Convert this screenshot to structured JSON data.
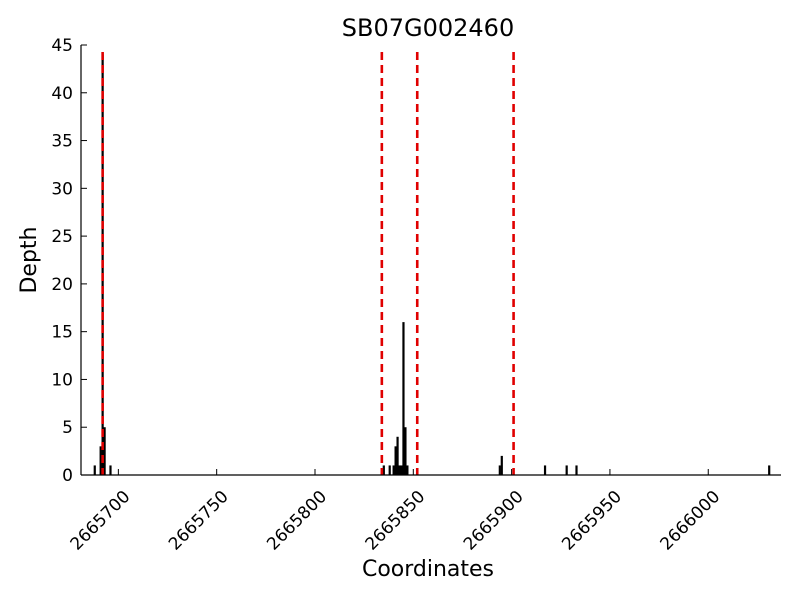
{
  "chart_data": {
    "type": "bar",
    "title": "SB07G002460",
    "xlabel": "Coordinates",
    "ylabel": "Depth",
    "xlim": [
      2665681,
      2666037
    ],
    "ylim": [
      0,
      45
    ],
    "xticks": [
      2665700,
      2665750,
      2665800,
      2665850,
      2665900,
      2665950,
      2666000
    ],
    "xtick_labels": [
      "2665700",
      "2665750",
      "2665800",
      "2665850",
      "2665900",
      "2665950",
      "2666000"
    ],
    "yticks": [
      0,
      5,
      10,
      15,
      20,
      25,
      30,
      35,
      40,
      45
    ],
    "ytick_labels": [
      "0",
      "5",
      "10",
      "15",
      "20",
      "25",
      "30",
      "35",
      "40",
      "45"
    ],
    "grid": false,
    "bar_color": "#000000",
    "vline_color": "#e00000",
    "bars": [
      {
        "x": 2665688,
        "y": 1
      },
      {
        "x": 2665691,
        "y": 3
      },
      {
        "x": 2665692,
        "y": 44
      },
      {
        "x": 2665693,
        "y": 5
      },
      {
        "x": 2665696,
        "y": 1
      },
      {
        "x": 2665835,
        "y": 1
      },
      {
        "x": 2665838,
        "y": 1
      },
      {
        "x": 2665840,
        "y": 1
      },
      {
        "x": 2665841,
        "y": 3
      },
      {
        "x": 2665842,
        "y": 4
      },
      {
        "x": 2665843,
        "y": 1
      },
      {
        "x": 2665844,
        "y": 1
      },
      {
        "x": 2665845,
        "y": 16
      },
      {
        "x": 2665846,
        "y": 5
      },
      {
        "x": 2665847,
        "y": 1
      },
      {
        "x": 2665894,
        "y": 1
      },
      {
        "x": 2665895,
        "y": 2
      },
      {
        "x": 2665917,
        "y": 1
      },
      {
        "x": 2665928,
        "y": 1
      },
      {
        "x": 2665933,
        "y": 1
      },
      {
        "x": 2666031,
        "y": 1
      }
    ],
    "vlines": [
      2665692,
      2665834,
      2665852,
      2665901
    ]
  }
}
